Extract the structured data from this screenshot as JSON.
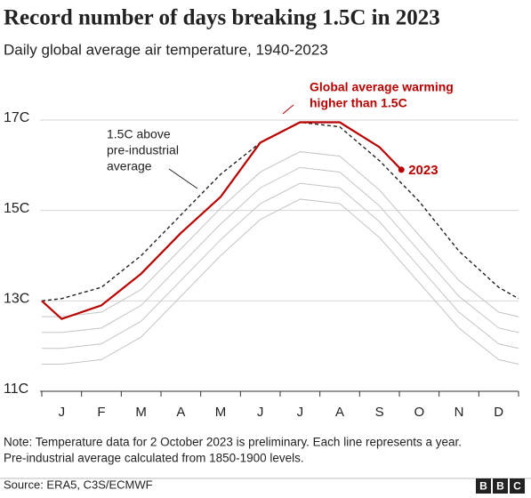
{
  "chart_data": {
    "type": "line",
    "title": "Record number of days breaking 1.5C in 2023",
    "subtitle": "Daily global average air temperature, 1940-2023",
    "categories": [
      "J",
      "F",
      "M",
      "A",
      "M",
      "J",
      "J",
      "A",
      "S",
      "O",
      "N",
      "D"
    ],
    "xlim": [
      0,
      12
    ],
    "xticks": [
      0,
      1,
      2,
      3,
      4,
      5,
      6,
      7,
      8,
      9,
      10,
      11,
      12
    ],
    "ylim": [
      11,
      17.7
    ],
    "yticks": [
      {
        "value": 11,
        "label": "11C"
      },
      {
        "value": 13,
        "label": "13C"
      },
      {
        "value": 15,
        "label": "15C"
      },
      {
        "value": 17,
        "label": "17C"
      }
    ],
    "grid": true,
    "series": [
      {
        "color": "#c4c4c4",
        "x": [
          0,
          0.5,
          1.5,
          2.5,
          3.5,
          4.5,
          5.5,
          6.5,
          7.5,
          8.5,
          9.5,
          10.5,
          11.5,
          12
        ],
        "values": [
          11.6,
          11.6,
          11.7,
          12.2,
          13.1,
          14.0,
          14.8,
          15.25,
          15.15,
          14.4,
          13.4,
          12.4,
          11.7,
          11.6
        ]
      },
      {
        "color": "#c4c4c4",
        "x": [
          0,
          0.5,
          1.5,
          2.5,
          3.5,
          4.5,
          5.5,
          6.5,
          7.5,
          8.5,
          9.5,
          10.5,
          11.5,
          12
        ],
        "values": [
          11.95,
          11.95,
          12.05,
          12.55,
          13.45,
          14.35,
          15.15,
          15.6,
          15.5,
          14.75,
          13.75,
          12.75,
          12.05,
          11.95
        ]
      },
      {
        "color": "#c4c4c4",
        "x": [
          0,
          0.5,
          1.5,
          2.5,
          3.5,
          4.5,
          5.5,
          6.5,
          7.5,
          8.5,
          9.5,
          10.5,
          11.5,
          12
        ],
        "values": [
          12.3,
          12.3,
          12.4,
          12.9,
          13.8,
          14.7,
          15.5,
          15.95,
          15.85,
          15.1,
          14.1,
          13.1,
          12.4,
          12.3
        ]
      },
      {
        "color": "#c4c4c4",
        "x": [
          0,
          0.5,
          1.5,
          2.5,
          3.5,
          4.5,
          5.5,
          6.5,
          7.5,
          8.5,
          9.5,
          10.5,
          11.5,
          12
        ],
        "values": [
          12.65,
          12.65,
          12.75,
          13.25,
          14.15,
          15.05,
          15.85,
          16.3,
          16.2,
          15.45,
          14.45,
          13.45,
          12.75,
          12.65
        ]
      },
      {
        "color": "#222222",
        "dashed": true,
        "x": [
          0,
          0.5,
          1.5,
          2.5,
          3.5,
          4.5,
          5.5,
          6.5,
          7.5,
          8.5,
          9.5,
          10.5,
          11.5,
          12
        ],
        "values": [
          13.0,
          13.05,
          13.3,
          14.0,
          14.9,
          15.8,
          16.5,
          16.95,
          16.85,
          16.1,
          15.2,
          14.1,
          13.3,
          13.05
        ]
      },
      {
        "name": "2023",
        "color": "#b80000",
        "x": [
          0,
          0.5,
          1.5,
          2.5,
          3.5,
          4.5,
          5.5,
          6.5,
          7.5,
          8.5,
          9.05
        ],
        "values": [
          13.0,
          12.6,
          12.9,
          13.6,
          14.5,
          15.3,
          16.5,
          16.95,
          16.95,
          16.4,
          15.9
        ]
      }
    ],
    "annotations": [
      {
        "lines": [
          "1.5C above",
          "pre-industrial",
          "average"
        ],
        "color": "#222222"
      },
      {
        "lines": [
          "Global average warming",
          "higher than 1.5C"
        ],
        "color": "#b80000"
      }
    ],
    "note": [
      "Note: Temperature data for 2 October 2023 is preliminary. Each line represents a year.",
      "Pre-industrial average calculated from 1850-1900 levels."
    ],
    "source": "Source: ERA5, C3S/ECMWF",
    "logo": [
      "B",
      "B",
      "C"
    ]
  }
}
